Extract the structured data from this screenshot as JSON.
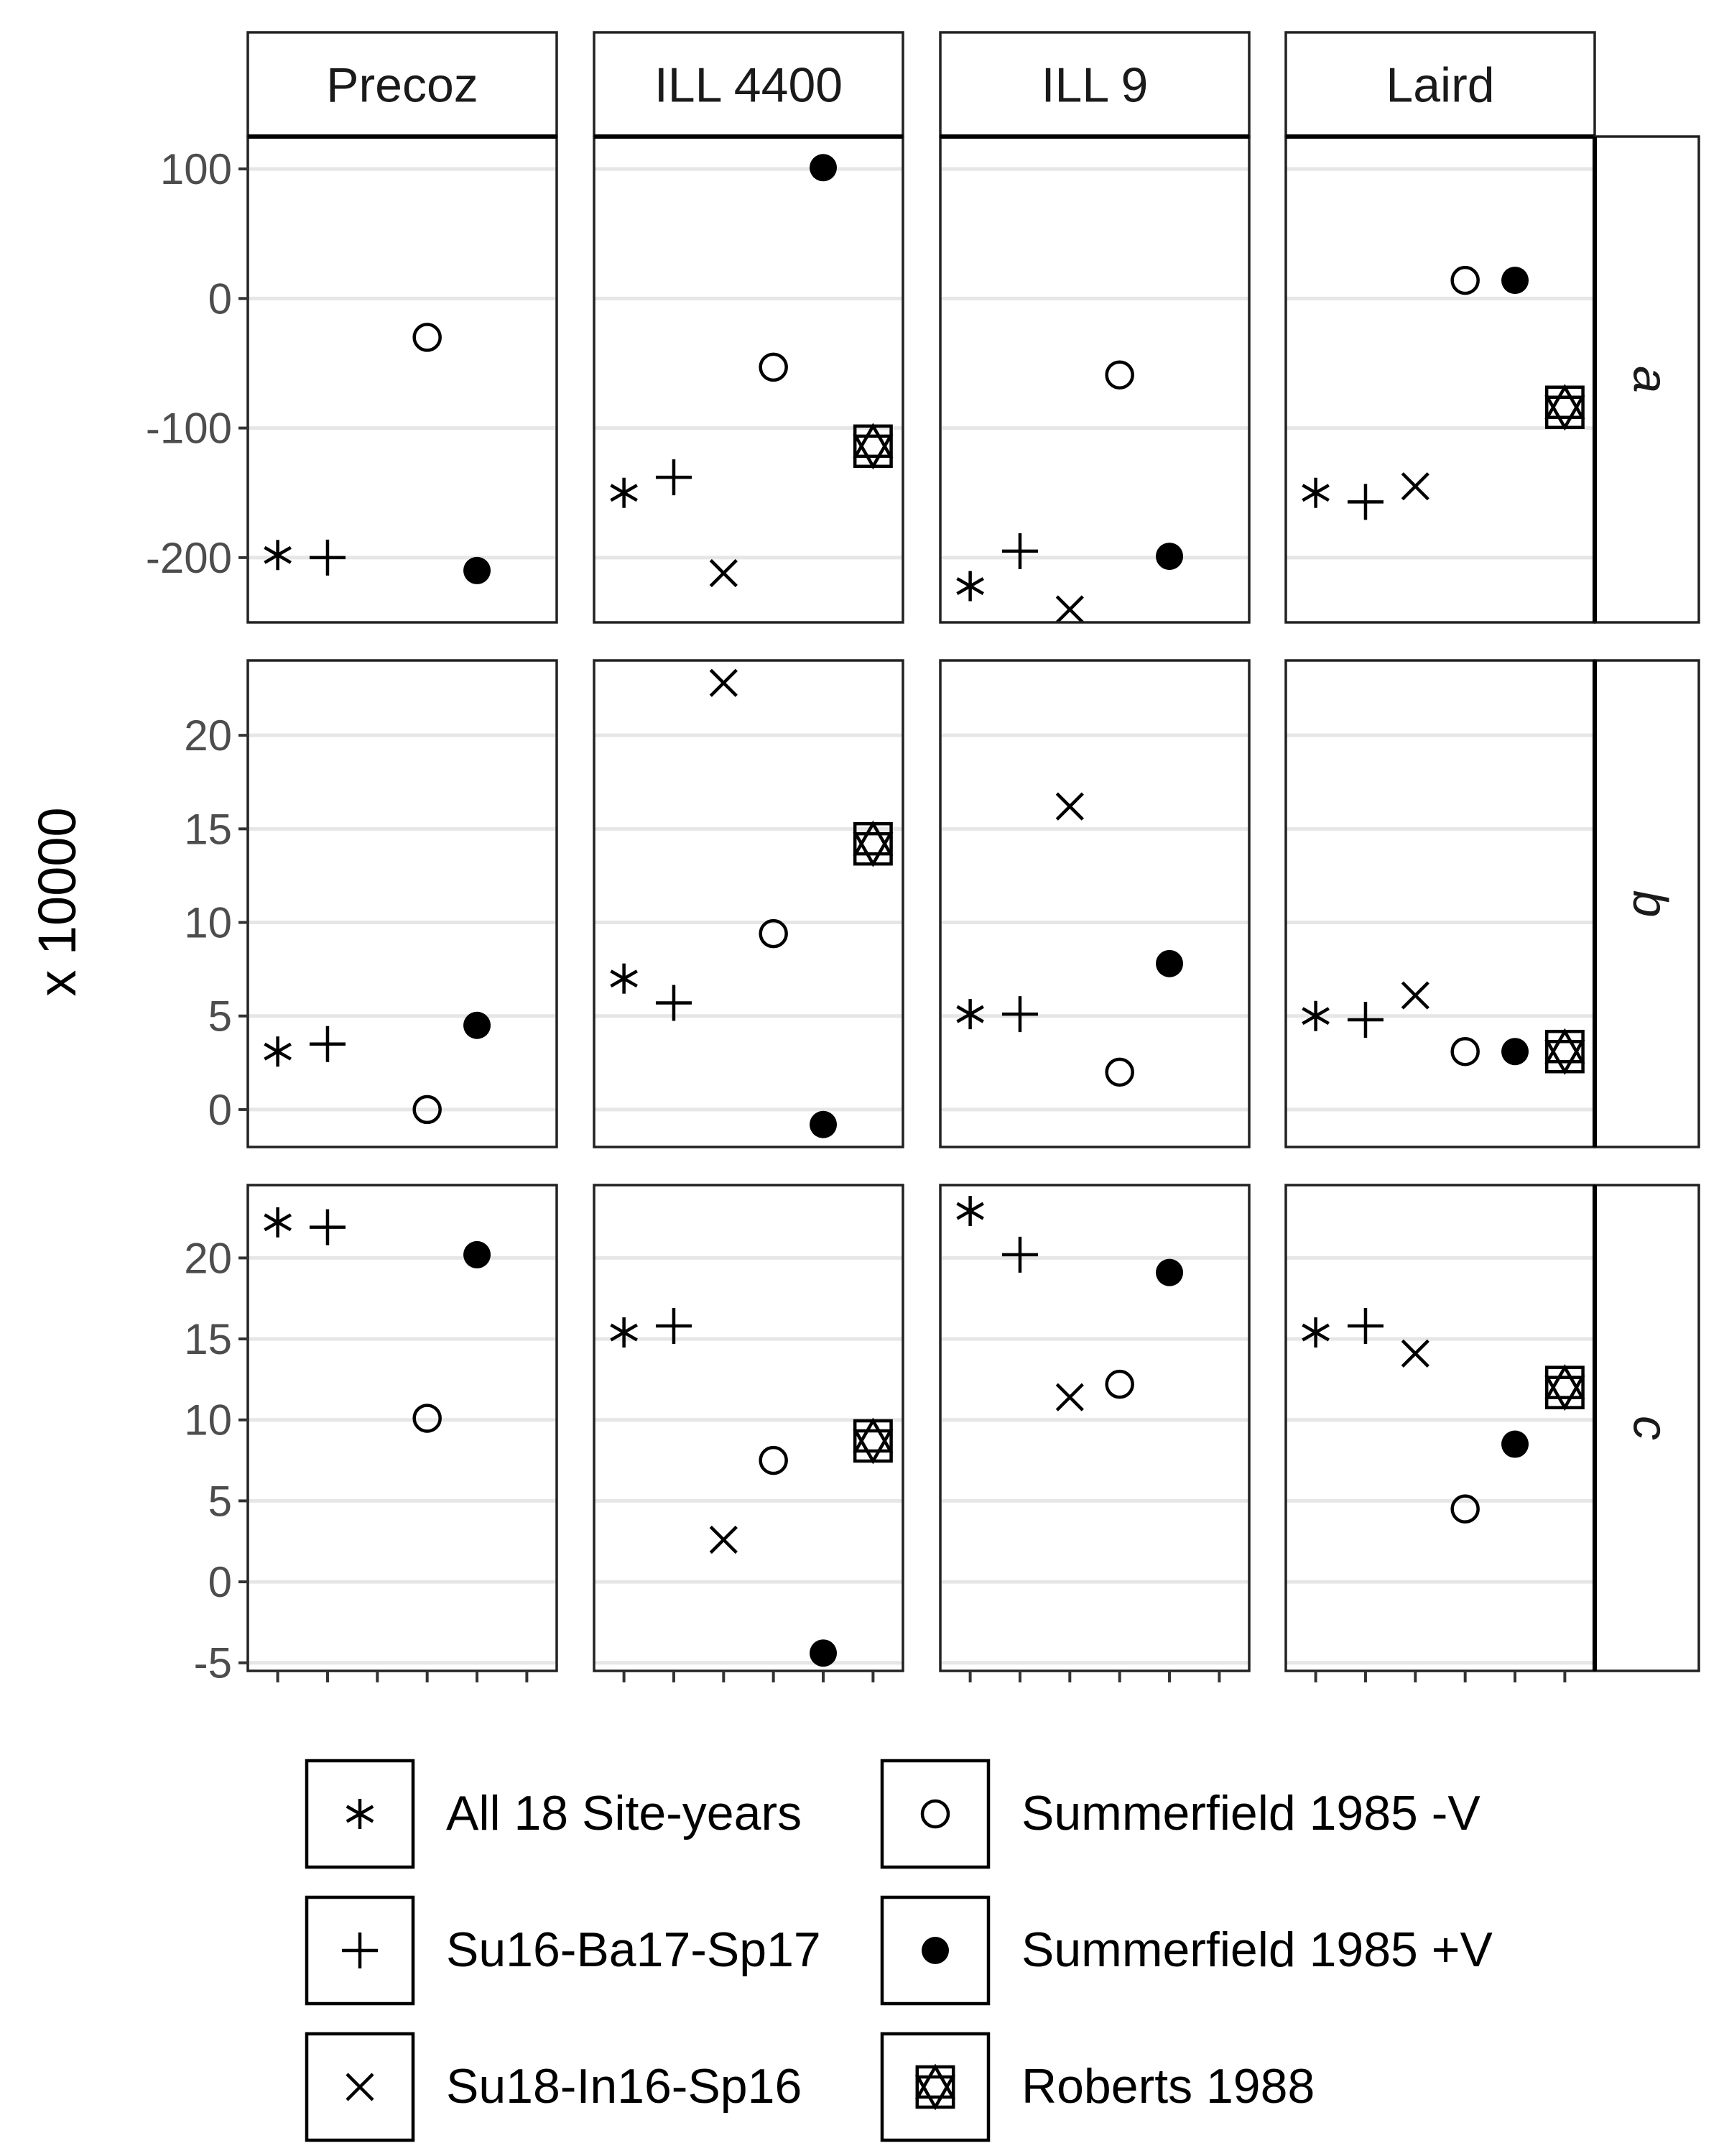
{
  "chart_data": {
    "type": "scatter",
    "ylabel": "x 10000",
    "columns": [
      "Precoz",
      "ILL 4400",
      "ILL 9",
      "Laird"
    ],
    "rows": [
      {
        "label": "a",
        "ylim": [
          -250,
          125
        ],
        "ticks": [
          100,
          0,
          -100,
          -200
        ],
        "tick_labels": [
          "100",
          "0",
          "-100",
          "-200"
        ]
      },
      {
        "label": "b",
        "ylim": [
          -2,
          24
        ],
        "ticks": [
          20,
          15,
          10,
          5,
          0
        ],
        "tick_labels": [
          "20",
          "15",
          "10",
          "5",
          "0"
        ]
      },
      {
        "label": "c",
        "ylim": [
          -5.5,
          24.5
        ],
        "ticks": [
          20,
          15,
          10,
          5,
          0,
          -5
        ],
        "tick_labels": [
          "20",
          "15",
          "10",
          "5",
          "0",
          "-5"
        ]
      }
    ],
    "x_positions": 6,
    "series": [
      {
        "name": "All 18 Site-years",
        "shape": "asterisk",
        "x": 1,
        "values": {
          "a": [
            -198,
            -150,
            -222,
            -150
          ],
          "b": [
            3.1,
            7.0,
            5.1,
            5.0
          ],
          "c": [
            22.2,
            15.4,
            22.9,
            15.4
          ]
        }
      },
      {
        "name": "Su16-Ba17-Sp17",
        "shape": "plus",
        "x": 2,
        "values": {
          "a": [
            -200,
            -138,
            -195,
            -157
          ],
          "b": [
            3.5,
            5.7,
            5.1,
            4.8
          ],
          "c": [
            21.9,
            15.8,
            20.2,
            15.8
          ]
        }
      },
      {
        "name": "Su18-In16-Sp16",
        "shape": "cross",
        "x": 3,
        "values": {
          "a": [
            null,
            -212,
            -240,
            -145
          ],
          "b": [
            null,
            22.8,
            16.2,
            6.1
          ],
          "c": [
            null,
            2.6,
            11.4,
            14.1
          ]
        }
      },
      {
        "name": "Summerfield 1985 -V",
        "shape": "open-circle",
        "x": 4,
        "values": {
          "a": [
            -30,
            -53,
            -59,
            14
          ],
          "b": [
            0.0,
            9.4,
            2.0,
            3.1
          ],
          "c": [
            10.1,
            7.5,
            12.2,
            4.5
          ]
        }
      },
      {
        "name": "Summerfield 1985 +V",
        "shape": "filled-circle",
        "x": 5,
        "values": {
          "a": [
            -210,
            101,
            -199,
            14
          ],
          "b": [
            4.5,
            -0.8,
            7.8,
            3.1
          ],
          "c": [
            20.2,
            -4.4,
            19.1,
            8.5
          ]
        }
      },
      {
        "name": "Roberts 1988",
        "shape": "star-of-david",
        "x": 6,
        "values": {
          "a": [
            null,
            -114,
            null,
            -84
          ],
          "b": [
            null,
            14.2,
            null,
            3.1
          ],
          "c": [
            null,
            8.7,
            null,
            12.0
          ]
        }
      }
    ],
    "grid": true,
    "legend_position": "bottom"
  }
}
